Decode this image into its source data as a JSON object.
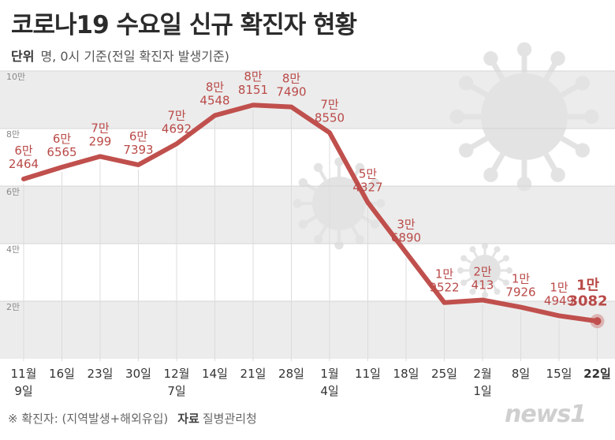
{
  "title": "코로나19 수요일 신규 확진자 현황",
  "unit": {
    "label": "단위",
    "text": "명, 0시 기준(전일 확진자 발생기준)"
  },
  "footnote": {
    "note": "※ 확진자: (지역발생+해외유입)",
    "source_label": "자료",
    "source": "질병관리청"
  },
  "logo": "news1",
  "colors": {
    "line": "#c0504d",
    "label": "#b94a48",
    "band": "#ececec",
    "virus": "#e3e3e3"
  },
  "chart_data": {
    "type": "line",
    "title": "코로나19 수요일 신규 확진자 현황",
    "ylabel": "명",
    "ylim": [
      0,
      100000
    ],
    "y_ticks": [
      {
        "value": 20000,
        "label": "2만"
      },
      {
        "value": 40000,
        "label": "4만"
      },
      {
        "value": 60000,
        "label": "6만"
      },
      {
        "value": 80000,
        "label": "8만"
      },
      {
        "value": 100000,
        "label": "10만"
      }
    ],
    "categories": [
      {
        "line1": "11월",
        "line2": "9일"
      },
      {
        "line1": "16일",
        "line2": ""
      },
      {
        "line1": "23일",
        "line2": ""
      },
      {
        "line1": "30일",
        "line2": ""
      },
      {
        "line1": "12월",
        "line2": "7일"
      },
      {
        "line1": "14일",
        "line2": ""
      },
      {
        "line1": "21일",
        "line2": ""
      },
      {
        "line1": "28일",
        "line2": ""
      },
      {
        "line1": "1월",
        "line2": "4일"
      },
      {
        "line1": "11일",
        "line2": ""
      },
      {
        "line1": "18일",
        "line2": ""
      },
      {
        "line1": "25일",
        "line2": ""
      },
      {
        "line1": "2월",
        "line2": "1일"
      },
      {
        "line1": "8일",
        "line2": ""
      },
      {
        "line1": "15일",
        "line2": ""
      },
      {
        "line1": "22일",
        "line2": ""
      }
    ],
    "values": [
      62464,
      66565,
      70299,
      67393,
      74692,
      84548,
      88151,
      87490,
      78550,
      54327,
      36890,
      19522,
      20413,
      17926,
      14949,
      13082
    ],
    "labels": [
      {
        "top": "6만",
        "bottom": "2464"
      },
      {
        "top": "6만",
        "bottom": "6565"
      },
      {
        "top": "7만",
        "bottom": "299"
      },
      {
        "top": "6만",
        "bottom": "7393"
      },
      {
        "top": "7만",
        "bottom": "4692"
      },
      {
        "top": "8만",
        "bottom": "4548"
      },
      {
        "top": "8만",
        "bottom": "8151"
      },
      {
        "top": "8만",
        "bottom": "7490"
      },
      {
        "top": "7만",
        "bottom": "8550"
      },
      {
        "top": "5만",
        "bottom": "4327"
      },
      {
        "top": "3만",
        "bottom": "6890"
      },
      {
        "top": "1만",
        "bottom": "9522"
      },
      {
        "top": "2만",
        "bottom": "413"
      },
      {
        "top": "1만",
        "bottom": "7926"
      },
      {
        "top": "1만",
        "bottom": "4949"
      },
      {
        "top": "1만",
        "bottom": "3082"
      }
    ]
  }
}
